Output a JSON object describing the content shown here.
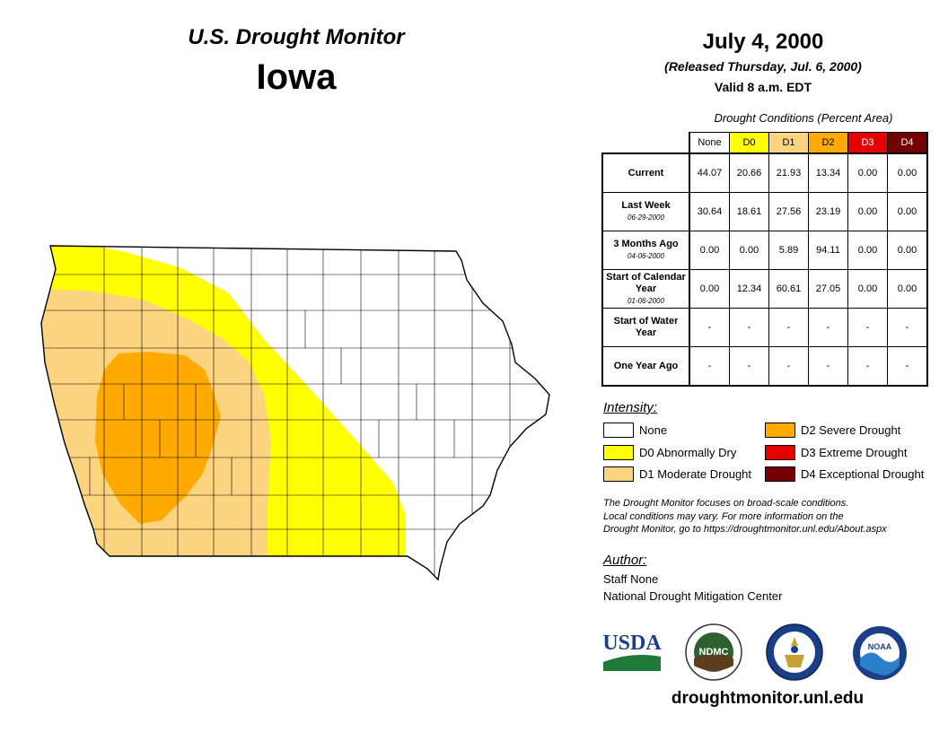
{
  "header": {
    "supertitle": "U.S. Drought Monitor",
    "state": "Iowa",
    "date": "July 4, 2000",
    "released": "(Released Thursday, Jul. 6, 2000)",
    "valid": "Valid 8 a.m. EDT"
  },
  "conditions": {
    "caption": "Drought Conditions (Percent Area)",
    "columns": [
      "None",
      "D0",
      "D1",
      "D2",
      "D3",
      "D4"
    ],
    "column_colors": [
      "#ffffff",
      "#ffff00",
      "#fcd37f",
      "#ffaa00",
      "#e60000",
      "#730000"
    ],
    "rows": [
      {
        "label": "Current",
        "sub": "",
        "values": [
          "44.07",
          "20.66",
          "21.93",
          "13.34",
          "0.00",
          "0.00"
        ]
      },
      {
        "label": "Last Week",
        "sub": "06-29-2000",
        "values": [
          "30.64",
          "18.61",
          "27.56",
          "23.19",
          "0.00",
          "0.00"
        ]
      },
      {
        "label": "3 Months Ago",
        "sub": "04-06-2000",
        "values": [
          "0.00",
          "0.00",
          "5.89",
          "94.11",
          "0.00",
          "0.00"
        ]
      },
      {
        "label": "Start of Calendar Year",
        "sub": "01-06-2000",
        "values": [
          "0.00",
          "12.34",
          "60.61",
          "27.05",
          "0.00",
          "0.00"
        ]
      },
      {
        "label": "Start of Water Year",
        "sub": "",
        "values": [
          "-",
          "-",
          "-",
          "-",
          "-",
          "-"
        ]
      },
      {
        "label": "One Year Ago",
        "sub": "",
        "values": [
          "-",
          "-",
          "-",
          "-",
          "-",
          "-"
        ]
      }
    ]
  },
  "legend": {
    "title": "Intensity:",
    "items": [
      {
        "label": "None",
        "color": "#ffffff"
      },
      {
        "label": "D0 Abnormally Dry",
        "color": "#ffff00"
      },
      {
        "label": "D1 Moderate Drought",
        "color": "#fcd37f"
      },
      {
        "label": "D2 Severe Drought",
        "color": "#ffaa00"
      },
      {
        "label": "D3 Extreme Drought",
        "color": "#e60000"
      },
      {
        "label": "D4 Exceptional Drought",
        "color": "#730000"
      }
    ]
  },
  "note": {
    "line1": "The Drought Monitor focuses on broad-scale conditions.",
    "line2": "Local conditions may vary. For more information on the",
    "line3": "Drought Monitor, go to https://droughtmonitor.unl.edu/About.aspx"
  },
  "author": {
    "title": "Author:",
    "name": "Staff None",
    "org": "National Drought Mitigation Center"
  },
  "logos": {
    "usda": "USDA",
    "ndmc": "NDMC",
    "noaa": "NOAA"
  },
  "footer": {
    "url": "droughtmonitor.unl.edu"
  }
}
